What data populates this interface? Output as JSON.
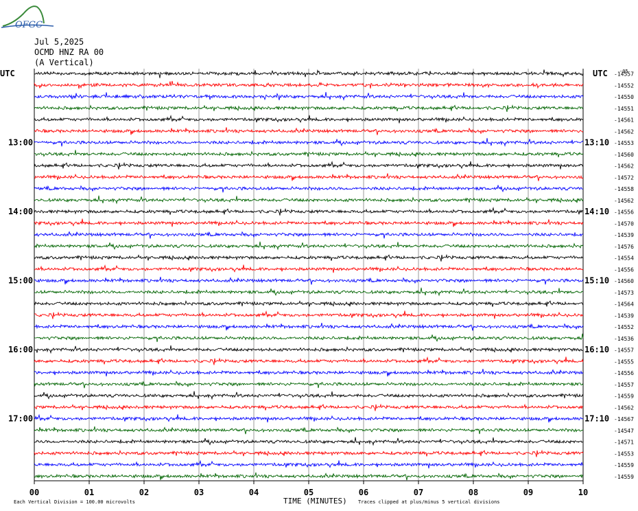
{
  "header": {
    "logo_text": "OFGC",
    "date": "Jul 5,2025",
    "station": "OCMD HNZ RA 00",
    "component": "(A Vertical)"
  },
  "axis": {
    "left_tz": "UTC",
    "right_tz": "UTC",
    "right_header": "-05",
    "xlabel": "TIME (MINUTES)",
    "x_ticks": [
      "00",
      "01",
      "02",
      "03",
      "04",
      "05",
      "06",
      "07",
      "08",
      "09",
      "10"
    ],
    "left_hour_labels": [
      "13:00",
      "14:00",
      "15:00",
      "16:00",
      "17:00"
    ],
    "right_hour_labels": [
      "13:10",
      "14:10",
      "15:10",
      "16:10",
      "17:10"
    ]
  },
  "footer": {
    "scale_note": "Each Vertical Division =  100.00 microvolts",
    "clip_note": "Traces clipped at plus/minus 5 vertical divisions"
  },
  "chart_data": {
    "type": "line",
    "title": "OCMD HNZ RA 00 (A Vertical)",
    "xlabel": "TIME (MINUTES)",
    "xlim": [
      0,
      10
    ],
    "trace_colors": [
      "#000000",
      "#ff0000",
      "#0000ff",
      "#006400"
    ],
    "grid": true,
    "trace_offsets": [
      -14557,
      -14552,
      -14550,
      -14551,
      -14561,
      -14562,
      -14553,
      -14560,
      -14562,
      -14572,
      -14558,
      -14562,
      -14556,
      -14570,
      -14539,
      -14576,
      -14554,
      -14556,
      -14560,
      -14573,
      -14564,
      -14539,
      -14552,
      -14536,
      -14557,
      -14555,
      -14556,
      -14557,
      -14559,
      -14562,
      -14567,
      -14547,
      -14571,
      -14553,
      -14559,
      -14559
    ]
  }
}
